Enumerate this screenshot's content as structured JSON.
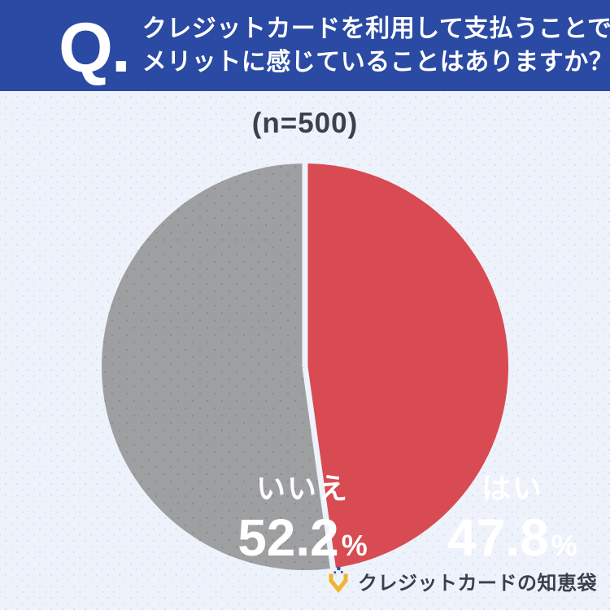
{
  "header": {
    "q_mark": "Q.",
    "title_line1": "クレジットカードを利用して支払うことで",
    "title_line2": "メリットに感じていることはありますか？",
    "bg_color": "#2b4aa3",
    "text_color": "#ffffff"
  },
  "sample_label": "(n=500)",
  "chart_data": {
    "type": "pie",
    "title": "クレジットカードを利用して支払うことでメリットに感じていることはありますか？",
    "sample_size_label": "(n=500)",
    "sample_size": 500,
    "unit": "%",
    "start_angle_deg": 0,
    "direction": "clockwise",
    "divider_color": "#eef2fb",
    "slices": [
      {
        "label": "はい",
        "value": 47.8,
        "value_text": "47.8",
        "color": "#d84b52",
        "dotted": false
      },
      {
        "label": "いいえ",
        "value": 52.2,
        "value_text": "52.2",
        "color": "#9e9fa1",
        "dotted": true
      }
    ],
    "legend_position": "inside",
    "grid": false
  },
  "footer": {
    "logo_text": "クレジットカードの知恵袋",
    "logo_icon": "chiebukuro-sparkle-bag-icon",
    "logo_icon_colors": {
      "bag": "#f1b42e",
      "sparkle": "#2b4aa3"
    }
  }
}
